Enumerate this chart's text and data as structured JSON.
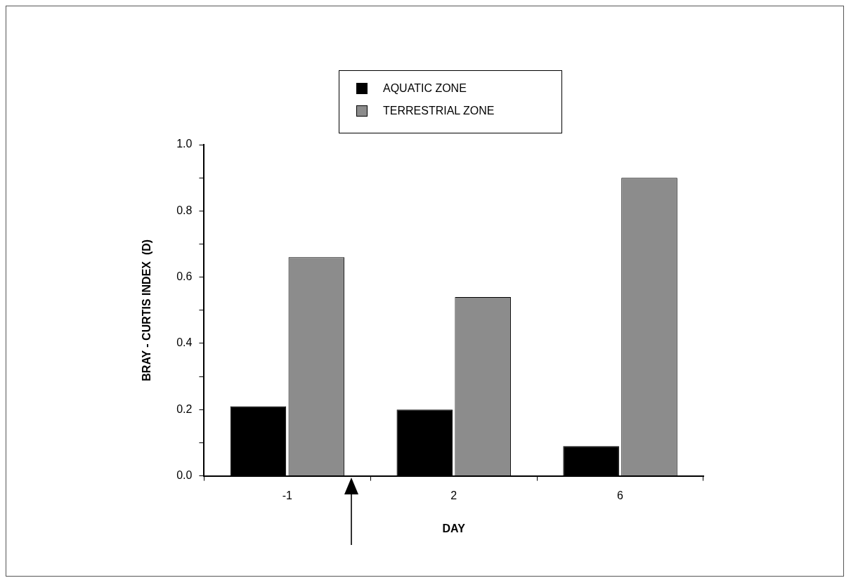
{
  "chart_data": {
    "type": "bar",
    "categories": [
      "-1",
      "2",
      "6"
    ],
    "series": [
      {
        "name": "AQUATIC  ZONE",
        "color": "#000000",
        "values": [
          0.21,
          0.2,
          0.09
        ]
      },
      {
        "name": "TERRESTRIAL ZONE",
        "color": "#8c8c8c",
        "values": [
          0.66,
          0.54,
          0.9
        ]
      }
    ],
    "xlabel": "DAY",
    "ylabel": "BRAY - CURTIS INDEX  (D)",
    "ylim": [
      0,
      1
    ],
    "yticks": [
      {
        "value": 0,
        "label": "0.0"
      },
      {
        "value": 0.1,
        "label": null
      },
      0.2,
      {
        "value": 0.3,
        "label": null
      },
      0.4,
      {
        "value": 0.5,
        "label": null
      },
      0.6,
      {
        "value": 0.7,
        "label": null
      },
      0.8,
      {
        "value": 0.9,
        "label": null
      },
      {
        "value": 1,
        "label": "1.0"
      }
    ],
    "grid": false,
    "legend": "top"
  }
}
